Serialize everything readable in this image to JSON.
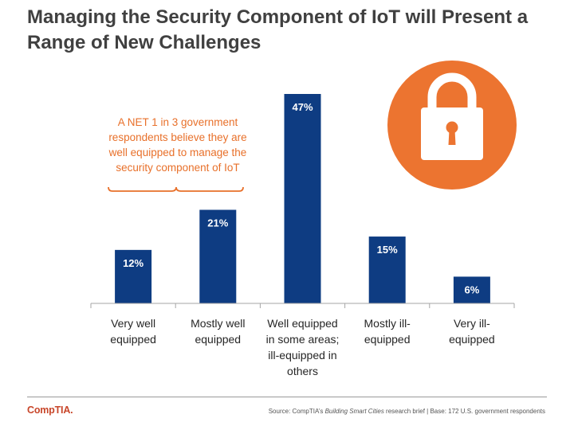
{
  "title_lines": [
    "Managing the Security Component of IoT will Present a",
    "Range of New Challenges"
  ],
  "callout": {
    "lines": [
      "A NET 1 in 3 government",
      "respondents believe they are",
      "well equipped to manage the",
      "security component of IoT"
    ]
  },
  "icon": {
    "name": "lock-icon",
    "circle_color": "#ec7430"
  },
  "colors": {
    "bar": "#0e3c82",
    "accent": "#e8702a",
    "axis": "#a6a6a6",
    "bar_label": "#ffffff",
    "outer_label": "#404040"
  },
  "chart_data": {
    "type": "bar",
    "title": "Managing the Security Component of IoT will Present a Range of New Challenges",
    "categories": [
      [
        "Very well",
        "equipped"
      ],
      [
        "Mostly well",
        "equipped"
      ],
      [
        "Well equipped",
        "in some areas;",
        "ill-equipped in",
        "others"
      ],
      [
        "Mostly ill-",
        "equipped"
      ],
      [
        "Very ill-",
        "equipped"
      ]
    ],
    "values": [
      12,
      21,
      47,
      15,
      6
    ],
    "data_labels": [
      "12%",
      "21%",
      "47%",
      "15%",
      "6%"
    ],
    "ylim": [
      0,
      50
    ],
    "xlabel": "",
    "ylabel": "",
    "grid": false,
    "legend": "none"
  },
  "footer": {
    "logo": "CompTIA.",
    "source_prefix": "Source: CompTIA’s ",
    "source_italic": "Building Smart Cities",
    "source_suffix": " research brief | Base: 172 U.S. government respondents"
  }
}
